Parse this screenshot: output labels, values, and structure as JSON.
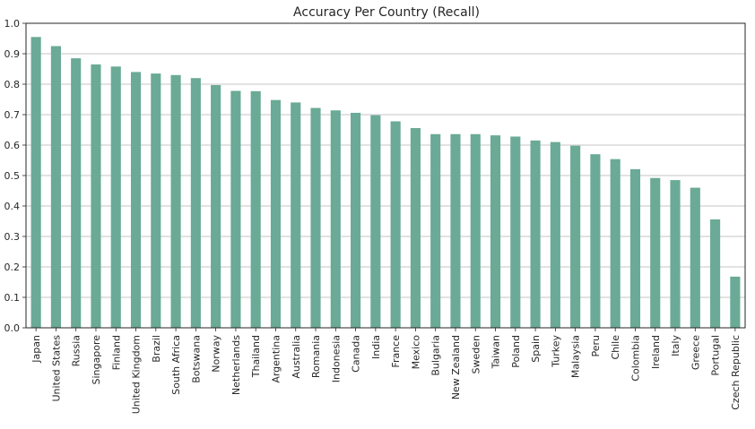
{
  "chart_data": {
    "type": "bar",
    "title": "Accuracy Per Country (Recall)",
    "xlabel": "",
    "ylabel": "",
    "ylim": [
      0.0,
      1.0
    ],
    "yticks": [
      "0.0",
      "0.1",
      "0.2",
      "0.3",
      "0.4",
      "0.5",
      "0.6",
      "0.7",
      "0.8",
      "0.9",
      "1.0"
    ],
    "grid": "horizontal",
    "bar_color": "#6aaa96",
    "categories": [
      "Japan",
      "United States",
      "Russia",
      "Singapore",
      "Finland",
      "United Kingdom",
      "Brazil",
      "South Africa",
      "Botswana",
      "Norway",
      "Netherlands",
      "Thailand",
      "Argentina",
      "Australia",
      "Romania",
      "Indonesia",
      "Canada",
      "India",
      "France",
      "Mexico",
      "Bulgaria",
      "New Zealand",
      "Sweden",
      "Taiwan",
      "Poland",
      "Spain",
      "Turkey",
      "Malaysia",
      "Peru",
      "Chile",
      "Colombia",
      "Ireland",
      "Italy",
      "Greece",
      "Portugal",
      "Czech Republic"
    ],
    "values": [
      0.955,
      0.925,
      0.885,
      0.865,
      0.858,
      0.84,
      0.835,
      0.83,
      0.82,
      0.797,
      0.778,
      0.777,
      0.748,
      0.74,
      0.722,
      0.714,
      0.706,
      0.698,
      0.678,
      0.656,
      0.636,
      0.636,
      0.636,
      0.632,
      0.628,
      0.615,
      0.61,
      0.598,
      0.57,
      0.554,
      0.521,
      0.492,
      0.485,
      0.46,
      0.356,
      0.168
    ]
  }
}
